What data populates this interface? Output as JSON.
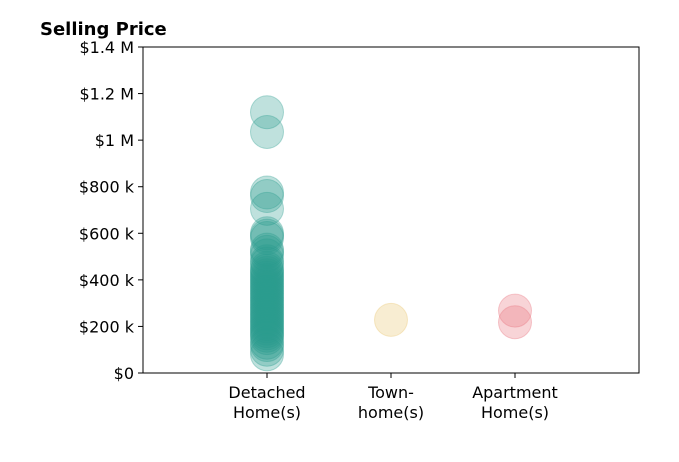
{
  "chart_data": {
    "type": "scatter",
    "title": "Selling Price",
    "xlabel": "",
    "ylabel": "",
    "categories": [
      {
        "lines": [
          "Detached",
          "Home(s)"
        ]
      },
      {
        "lines": [
          "Town-",
          "home(s)"
        ]
      },
      {
        "lines": [
          "Apartment",
          "Home(s)"
        ]
      }
    ],
    "ylim": [
      0,
      1400000
    ],
    "yticks": [
      {
        "value": 0,
        "label": "$0"
      },
      {
        "value": 200000,
        "label": "$200 k"
      },
      {
        "value": 400000,
        "label": "$400 k"
      },
      {
        "value": 600000,
        "label": "$600 k"
      },
      {
        "value": 800000,
        "label": "$800 k"
      },
      {
        "value": 1000000,
        "label": "$1 M"
      },
      {
        "value": 1200000,
        "label": "$1.2 M"
      },
      {
        "value": 1400000,
        "label": "$1.4 M"
      }
    ],
    "grid": false,
    "legend": "none",
    "series": [
      {
        "category_index": 0,
        "color": "#2a9d8f",
        "values": [
          1120000,
          1035000,
          775000,
          760000,
          705000,
          600000,
          590000,
          580000,
          530000,
          520000,
          505000,
          480000,
          470000,
          450000,
          440000,
          430000,
          420000,
          410000,
          400000,
          390000,
          380000,
          370000,
          360000,
          350000,
          340000,
          330000,
          320000,
          310000,
          300000,
          290000,
          280000,
          270000,
          260000,
          250000,
          240000,
          230000,
          220000,
          210000,
          200000,
          190000,
          180000,
          170000,
          160000,
          150000,
          130000,
          120000,
          100000,
          80000
        ]
      },
      {
        "category_index": 1,
        "color": "#e9c46a",
        "values": [
          228000
        ]
      },
      {
        "category_index": 2,
        "color": "#e76f7a",
        "values": [
          268000,
          218000
        ]
      }
    ]
  }
}
